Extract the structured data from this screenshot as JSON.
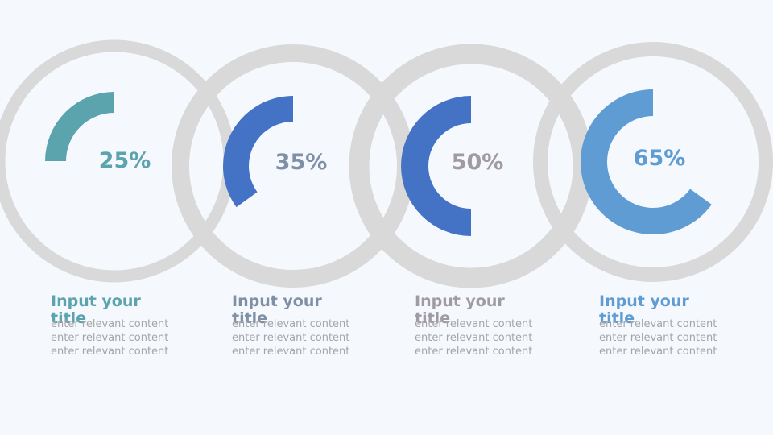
{
  "colors": {
    "track": "#d9d9d9",
    "teal": "#5ba3ad",
    "blue": "#4472c4",
    "slate": "#7f8fa6",
    "mauve": "#a09aa3",
    "lightblue": "#5f9cd3",
    "body_text": "#a5a5a5"
  },
  "chart_data": [
    {
      "type": "pie",
      "value": 25,
      "label": "25%",
      "fill_color": "#5ba3ad",
      "label_color": "#5ba3ad"
    },
    {
      "type": "pie",
      "value": 35,
      "label": "35%",
      "fill_color": "#4472c4",
      "label_color": "#7f8fa6"
    },
    {
      "type": "pie",
      "value": 50,
      "label": "50%",
      "fill_color": "#4472c4",
      "label_color": "#a09aa3"
    },
    {
      "type": "pie",
      "value": 65,
      "label": "65%",
      "fill_color": "#5f9cd3",
      "label_color": "#5f9cd3"
    }
  ],
  "columns": [
    {
      "title": "Input your title",
      "title_color": "#5ba3ad",
      "lines": [
        "enter relevant content",
        "enter relevant content",
        "enter relevant content"
      ]
    },
    {
      "title": "Input your title",
      "title_color": "#7f8fa6",
      "lines": [
        "enter relevant content",
        "enter relevant content",
        "enter relevant content"
      ]
    },
    {
      "title": "Input your title",
      "title_color": "#a09aa3",
      "lines": [
        "enter relevant content",
        "enter relevant content",
        "enter relevant content"
      ]
    },
    {
      "title": "Input your title",
      "title_color": "#5f9cd3",
      "lines": [
        "enter relevant content",
        "enter relevant content",
        "enter relevant content"
      ]
    }
  ]
}
